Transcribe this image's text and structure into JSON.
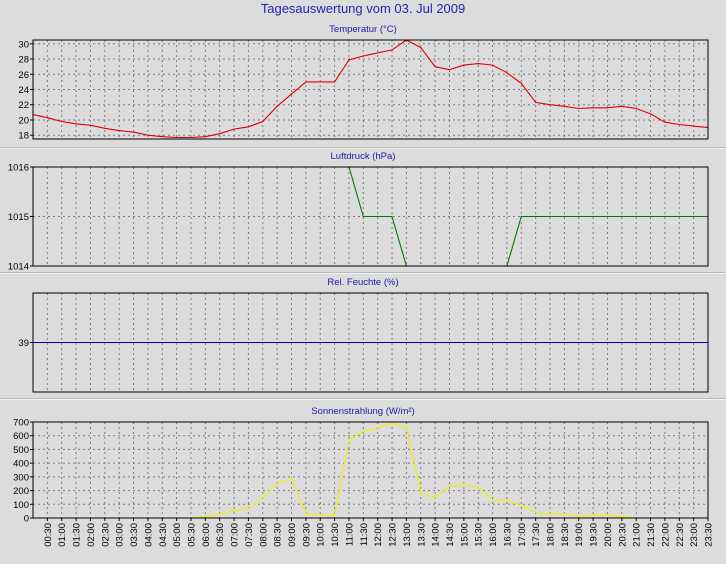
{
  "page": {
    "title": "Tagesauswertung vom 03. Jul 2009"
  },
  "chart_data": [
    {
      "type": "line",
      "title": "Temperatur (°C)",
      "color": "#e00000",
      "ylim": [
        17.5,
        30.5
      ],
      "yticks": [
        18,
        20,
        22,
        24,
        26,
        28,
        30
      ],
      "grid": true,
      "x": [
        "00:00",
        "00:30",
        "01:00",
        "01:30",
        "02:00",
        "02:30",
        "03:00",
        "03:30",
        "04:00",
        "04:30",
        "05:00",
        "05:30",
        "06:00",
        "06:30",
        "07:00",
        "07:30",
        "08:00",
        "08:30",
        "09:00",
        "09:30",
        "10:00",
        "10:30",
        "11:00",
        "11:30",
        "12:00",
        "12:30",
        "13:00",
        "13:30",
        "14:00",
        "14:30",
        "15:00",
        "15:30",
        "16:00",
        "16:30",
        "17:00",
        "17:30",
        "18:00",
        "18:30",
        "19:00",
        "19:30",
        "20:00",
        "20:30",
        "21:00",
        "21:30",
        "22:00",
        "22:30",
        "23:00",
        "23:30"
      ],
      "values": [
        20.7,
        20.3,
        19.8,
        19.5,
        19.3,
        18.9,
        18.6,
        18.4,
        18.0,
        17.8,
        17.7,
        17.7,
        17.8,
        18.2,
        18.8,
        19.1,
        19.8,
        21.8,
        23.4,
        25.0,
        25.0,
        25.0,
        27.9,
        28.4,
        28.8,
        29.2,
        30.5,
        29.5,
        27.0,
        26.6,
        27.2,
        27.4,
        27.2,
        26.2,
        24.8,
        22.3,
        22.0,
        21.8,
        21.5,
        21.6,
        21.6,
        21.8,
        21.5,
        20.8,
        19.7,
        19.4,
        19.2,
        19.0
      ]
    },
    {
      "type": "line",
      "title": "Luftdruck (hPa)",
      "color": "#007a00",
      "ylim": [
        1014,
        1016
      ],
      "yticks": [
        1014,
        1015,
        1016
      ],
      "grid": true,
      "x": [
        "00:00",
        "00:30",
        "01:00",
        "01:30",
        "02:00",
        "02:30",
        "03:00",
        "03:30",
        "04:00",
        "04:30",
        "05:00",
        "05:30",
        "06:00",
        "06:30",
        "07:00",
        "07:30",
        "08:00",
        "08:30",
        "09:00",
        "09:30",
        "10:00",
        "10:30",
        "11:00",
        "11:30",
        "12:00",
        "12:30",
        "13:00",
        "13:30",
        "14:00",
        "14:30",
        "15:00",
        "15:30",
        "16:00",
        "16:30",
        "17:00",
        "17:30",
        "18:00",
        "18:30",
        "19:00",
        "19:30",
        "20:00",
        "20:30",
        "21:00",
        "21:30",
        "22:00",
        "22:30",
        "23:00",
        "23:30"
      ],
      "values": [
        1016,
        1016,
        1016,
        1016,
        1016,
        1016,
        1016,
        1016,
        1016,
        1016,
        1016,
        1016,
        1016,
        1016,
        1016,
        1016,
        1016,
        1016,
        1016,
        1016,
        1016,
        1016,
        1016,
        1015,
        1015,
        1015,
        1014,
        1014,
        1014,
        1014,
        1014,
        1014,
        1014,
        1014,
        1015,
        1015,
        1015,
        1015,
        1015,
        1015,
        1015,
        1015,
        1015,
        1015,
        1015,
        1015,
        1015,
        1015
      ]
    },
    {
      "type": "line",
      "title": "Rel. Feuchte (%)",
      "color": "#0000c8",
      "ylim": [
        38,
        40
      ],
      "yticks": [
        39
      ],
      "grid": true,
      "x": [
        "00:00",
        "23:30"
      ],
      "values": [
        39,
        39
      ]
    },
    {
      "type": "line",
      "title": "Sonnenstrahlung (W/m²)",
      "color": "#f0f000",
      "ylim": [
        0,
        700
      ],
      "yticks": [
        0,
        100,
        200,
        300,
        400,
        500,
        600,
        700
      ],
      "grid": true,
      "x": [
        "00:00",
        "00:30",
        "01:00",
        "01:30",
        "02:00",
        "02:30",
        "03:00",
        "03:30",
        "04:00",
        "04:30",
        "05:00",
        "05:30",
        "06:00",
        "06:30",
        "07:00",
        "07:30",
        "08:00",
        "08:30",
        "09:00",
        "09:30",
        "10:00",
        "10:30",
        "11:00",
        "11:30",
        "12:00",
        "12:30",
        "13:00",
        "13:30",
        "14:00",
        "14:30",
        "15:00",
        "15:30",
        "16:00",
        "16:30",
        "17:00",
        "17:30",
        "18:00",
        "18:30",
        "19:00",
        "19:30",
        "20:00",
        "20:30",
        "21:00",
        "21:30",
        "22:00",
        "22:30",
        "23:00",
        "23:30"
      ],
      "values": [
        0,
        0,
        0,
        0,
        0,
        0,
        0,
        0,
        0,
        0,
        0,
        0,
        10,
        30,
        50,
        70,
        150,
        250,
        290,
        30,
        20,
        20,
        570,
        630,
        660,
        690,
        660,
        180,
        150,
        230,
        250,
        220,
        130,
        130,
        90,
        40,
        30,
        30,
        10,
        20,
        20,
        10,
        0,
        0,
        0,
        0,
        0,
        0
      ]
    }
  ],
  "x_axis": {
    "tick_labels": [
      "00:30",
      "01:00",
      "01:30",
      "02:00",
      "02:30",
      "03:00",
      "03:30",
      "04:00",
      "04:30",
      "05:00",
      "05:30",
      "06:00",
      "06:30",
      "07:00",
      "07:30",
      "08:00",
      "08:30",
      "09:00",
      "09:30",
      "10:00",
      "10:30",
      "11:00",
      "11:30",
      "12:00",
      "12:30",
      "13:00",
      "13:30",
      "14:00",
      "14:30",
      "15:00",
      "15:30",
      "16:00",
      "16:30",
      "17:00",
      "17:30",
      "18:00",
      "18:30",
      "19:00",
      "19:30",
      "20:00",
      "20:30",
      "21:00",
      "21:30",
      "22:00",
      "22:30",
      "23:00",
      "23:30"
    ]
  }
}
